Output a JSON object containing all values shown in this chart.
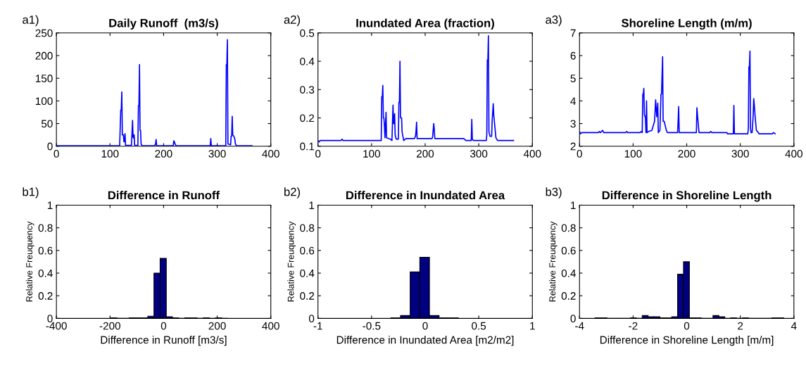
{
  "chart_data": [
    {
      "type": "line",
      "title": "Daily Runoff  (m3/s)",
      "annotations": [
        "a1)"
      ],
      "grid": false,
      "x": [
        0,
        118,
        120,
        121,
        122,
        123,
        125,
        126,
        127,
        128,
        129,
        140,
        141,
        142,
        143,
        144,
        145,
        146,
        152,
        153,
        154,
        155,
        156,
        157,
        158,
        160,
        183,
        185,
        186,
        187,
        218,
        219,
        220,
        222,
        224,
        287,
        288,
        289,
        316,
        317,
        318,
        319,
        320,
        325,
        326,
        327,
        328,
        329,
        331,
        333,
        334,
        336,
        365
      ],
      "series": [
        {
          "color": "#0000ff",
          "values": [
            1,
            1,
            80,
            80,
            120,
            25,
            25,
            10,
            10,
            28,
            2,
            2,
            28,
            57,
            20,
            18,
            25,
            2,
            2,
            90,
            90,
            180,
            35,
            35,
            5,
            1,
            1,
            5,
            15,
            1,
            1,
            12,
            10,
            3,
            1,
            1,
            17,
            1,
            1,
            180,
            180,
            235,
            5,
            3,
            22,
            22,
            66,
            25,
            22,
            15,
            5,
            1,
            1
          ]
        }
      ],
      "xlim": [
        0,
        400
      ],
      "xticks": [
        0,
        100,
        200,
        300,
        400
      ],
      "ylim": [
        0,
        250
      ],
      "yticks": [
        0,
        50,
        100,
        150,
        200,
        250
      ]
    },
    {
      "type": "line",
      "title": "Inundated Area (fraction)",
      "annotations": [
        "a2)"
      ],
      "grid": false,
      "x": [
        0,
        2,
        4,
        43,
        45,
        47,
        118,
        119,
        120,
        121,
        122,
        123,
        124,
        125,
        126,
        127,
        128,
        135,
        138,
        139,
        140,
        141,
        142,
        143,
        144,
        146,
        150,
        151,
        152,
        153,
        154,
        156,
        157,
        159,
        160,
        164,
        180,
        182,
        183,
        184,
        185,
        213,
        214,
        216,
        217,
        218,
        272,
        276,
        286,
        287,
        288,
        290,
        314,
        315,
        316,
        317,
        318,
        319,
        321,
        324,
        325,
        327,
        328,
        330,
        332,
        335,
        365
      ],
      "series": [
        {
          "color": "#0000ff",
          "values": [
            0.12,
            0.115,
            0.12,
            0.12,
            0.125,
            0.12,
            0.12,
            0.275,
            0.275,
            0.315,
            0.2,
            0.2,
            0.175,
            0.13,
            0.175,
            0.22,
            0.13,
            0.125,
            0.12,
            0.18,
            0.245,
            0.18,
            0.18,
            0.215,
            0.14,
            0.125,
            0.125,
            0.255,
            0.255,
            0.4,
            0.2,
            0.2,
            0.15,
            0.13,
            0.12,
            0.127,
            0.127,
            0.135,
            0.155,
            0.185,
            0.127,
            0.127,
            0.135,
            0.18,
            0.16,
            0.127,
            0.127,
            0.12,
            0.12,
            0.195,
            0.125,
            0.12,
            0.12,
            0.14,
            0.405,
            0.405,
            0.49,
            0.15,
            0.135,
            0.135,
            0.19,
            0.25,
            0.21,
            0.17,
            0.13,
            0.12,
            0.12
          ]
        }
      ],
      "xlim": [
        0,
        400
      ],
      "xticks": [
        0,
        100,
        200,
        300,
        400
      ],
      "ylim": [
        0.1,
        0.5
      ],
      "yticks": [
        0.1,
        0.2,
        0.3,
        0.4,
        0.5
      ]
    },
    {
      "type": "line",
      "title": "Shoreline Length (m/m)",
      "annotations": [
        "a3)"
      ],
      "grid": false,
      "x": [
        0,
        2,
        4,
        35,
        37,
        39,
        43,
        45,
        86,
        88,
        90,
        113,
        115,
        117,
        118,
        119,
        120,
        121,
        123,
        124,
        125,
        126,
        129,
        135,
        140,
        142,
        144,
        146,
        147,
        150,
        152,
        153,
        155,
        156,
        158,
        160,
        162,
        164,
        183,
        184,
        185,
        186,
        218,
        219,
        220,
        222,
        223,
        243,
        245,
        247,
        275,
        276,
        287,
        288,
        289,
        314,
        315,
        316,
        317,
        318,
        319,
        320,
        322,
        324,
        325,
        326,
        328,
        330,
        332,
        335,
        360,
        362,
        365
      ],
      "series": [
        {
          "color": "#0000ff",
          "values": [
            2.65,
            2.55,
            2.6,
            2.6,
            2.65,
            2.6,
            2.7,
            2.6,
            2.6,
            2.65,
            2.6,
            2.6,
            2.65,
            2.6,
            4.3,
            4.3,
            4.55,
            3.4,
            3.25,
            2.6,
            4.0,
            2.6,
            2.65,
            2.7,
            3.1,
            4.05,
            3.3,
            3.9,
            2.6,
            2.7,
            4.3,
            4.3,
            5.95,
            3.1,
            3.1,
            2.9,
            2.7,
            2.6,
            2.6,
            3.15,
            3.75,
            2.6,
            2.6,
            3.7,
            3.4,
            2.85,
            2.6,
            2.6,
            2.65,
            2.6,
            2.6,
            2.55,
            2.55,
            3.8,
            2.55,
            2.55,
            2.8,
            5.5,
            5.5,
            6.2,
            2.8,
            2.6,
            2.6,
            3.35,
            4.1,
            3.85,
            3.2,
            2.7,
            2.65,
            2.55,
            2.55,
            2.6,
            2.55
          ]
        }
      ],
      "xlim": [
        0,
        400
      ],
      "xticks": [
        0,
        100,
        200,
        300,
        400
      ],
      "ylim": [
        2,
        7
      ],
      "yticks": [
        2,
        3,
        4,
        5,
        6,
        7
      ]
    },
    {
      "type": "histogram",
      "title": "Difference in Runoff",
      "xlabel": "Difference in Runoff [m3/s]",
      "ylabel": "Relative Freuquency",
      "annotations": [
        "b1)"
      ],
      "grid": false,
      "color": "#000080",
      "bins": [
        -197,
        -174,
        -151,
        -128,
        -105,
        -82,
        -59,
        -36,
        -13,
        10,
        33,
        56,
        79,
        102,
        125,
        148,
        171,
        194,
        217,
        240
      ],
      "values": [
        0.005,
        0,
        0,
        0.005,
        0.005,
        0.005,
        0.02,
        0.4,
        0.53,
        0.015,
        0.005,
        0,
        0.005,
        0.005,
        0,
        0.005,
        0,
        0.005,
        0
      ],
      "xlim": [
        -400,
        400
      ],
      "xticks": [
        -400,
        -200,
        0,
        200,
        400
      ],
      "ylim": [
        0,
        1
      ],
      "yticks": [
        0,
        0.2,
        0.4,
        0.6,
        0.8,
        1
      ]
    },
    {
      "type": "histogram",
      "title": "Difference in Inundated Area",
      "xlabel": "Difference in Inundated Area [m2/m2]",
      "ylabel": "Relative Freuquency",
      "annotations": [
        "b2)"
      ],
      "grid": false,
      "color": "#000080",
      "bins": [
        -0.32,
        -0.23,
        -0.14,
        -0.05,
        0.04,
        0.13,
        0.22,
        0.31
      ],
      "values": [
        0.005,
        0.025,
        0.41,
        0.54,
        0.025,
        0.005,
        0.005
      ],
      "xlim": [
        -1,
        1
      ],
      "xticks": [
        -1,
        -0.5,
        0,
        0.5,
        1
      ],
      "ylim": [
        0,
        1
      ],
      "yticks": [
        0,
        0.2,
        0.4,
        0.6,
        0.8,
        1
      ]
    },
    {
      "type": "histogram",
      "title": "Difference in Shoreline Length",
      "xlabel": "Difference in Shoreline Length [m/m]",
      "ylabel": "Relative Freuquency",
      "annotations": [
        "b3)"
      ],
      "grid": false,
      "color": "#000080",
      "bins": [
        -3.42,
        -3.2,
        -2.98,
        -2.76,
        -2.54,
        -2.32,
        -2.1,
        -1.88,
        -1.66,
        -1.44,
        -1.22,
        -1.0,
        -0.78,
        -0.56,
        -0.34,
        -0.12,
        0.1,
        0.32,
        0.54,
        0.76,
        0.98,
        1.2,
        1.42,
        1.64,
        1.86,
        2.08,
        2.3,
        2.52,
        2.74,
        2.96,
        3.18,
        3.4,
        3.62
      ],
      "values": [
        0.005,
        0.005,
        0,
        0,
        0,
        0,
        0.005,
        0,
        0.025,
        0.015,
        0.015,
        0.005,
        0.005,
        0.015,
        0.39,
        0.5,
        0.005,
        0.005,
        0,
        0,
        0.025,
        0.015,
        0,
        0.005,
        0,
        0.005,
        0,
        0,
        0,
        0,
        0.005,
        0.005
      ],
      "xlim": [
        -4,
        4
      ],
      "xticks": [
        -4,
        -2,
        0,
        2,
        4
      ],
      "ylim": [
        0,
        1
      ],
      "yticks": [
        0,
        0.2,
        0.4,
        0.6,
        0.8,
        1
      ]
    }
  ]
}
